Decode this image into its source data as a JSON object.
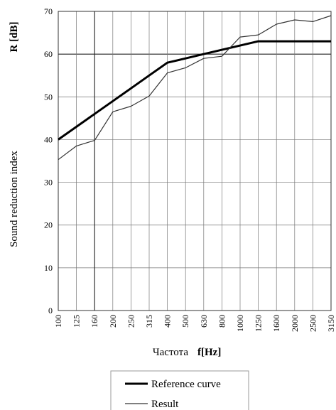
{
  "chart_data": {
    "type": "line",
    "categories": [
      "100",
      "125",
      "160",
      "200",
      "250",
      "315",
      "400",
      "500",
      "630",
      "800",
      "1000",
      "1250",
      "1600",
      "2000",
      "2500",
      "3150"
    ],
    "series": [
      {
        "name": "Reference curve",
        "values": [
          40,
          43,
          46,
          49,
          52,
          55,
          58,
          59,
          60,
          61,
          62,
          63,
          63,
          63,
          63,
          63
        ],
        "color": "#000000"
      },
      {
        "name": "Result",
        "values": [
          35.3,
          38.5,
          39.8,
          46.5,
          47.8,
          50.2,
          55.6,
          56.8,
          59.0,
          59.5,
          64.0,
          64.5,
          67.0,
          68.0,
          67.6,
          69.0
        ],
        "color": "#333333"
      }
    ],
    "xlabel_prefix": "Частота",
    "xlabel_symbol": "f[Hz]",
    "ylabel_text": "Sound reduction index",
    "ylabel_symbol": "R [dB]",
    "ylim": [
      0,
      70
    ],
    "yticks": [
      0,
      10,
      20,
      30,
      40,
      50,
      60,
      70
    ],
    "grid": true,
    "legend_position": "bottom-center"
  }
}
